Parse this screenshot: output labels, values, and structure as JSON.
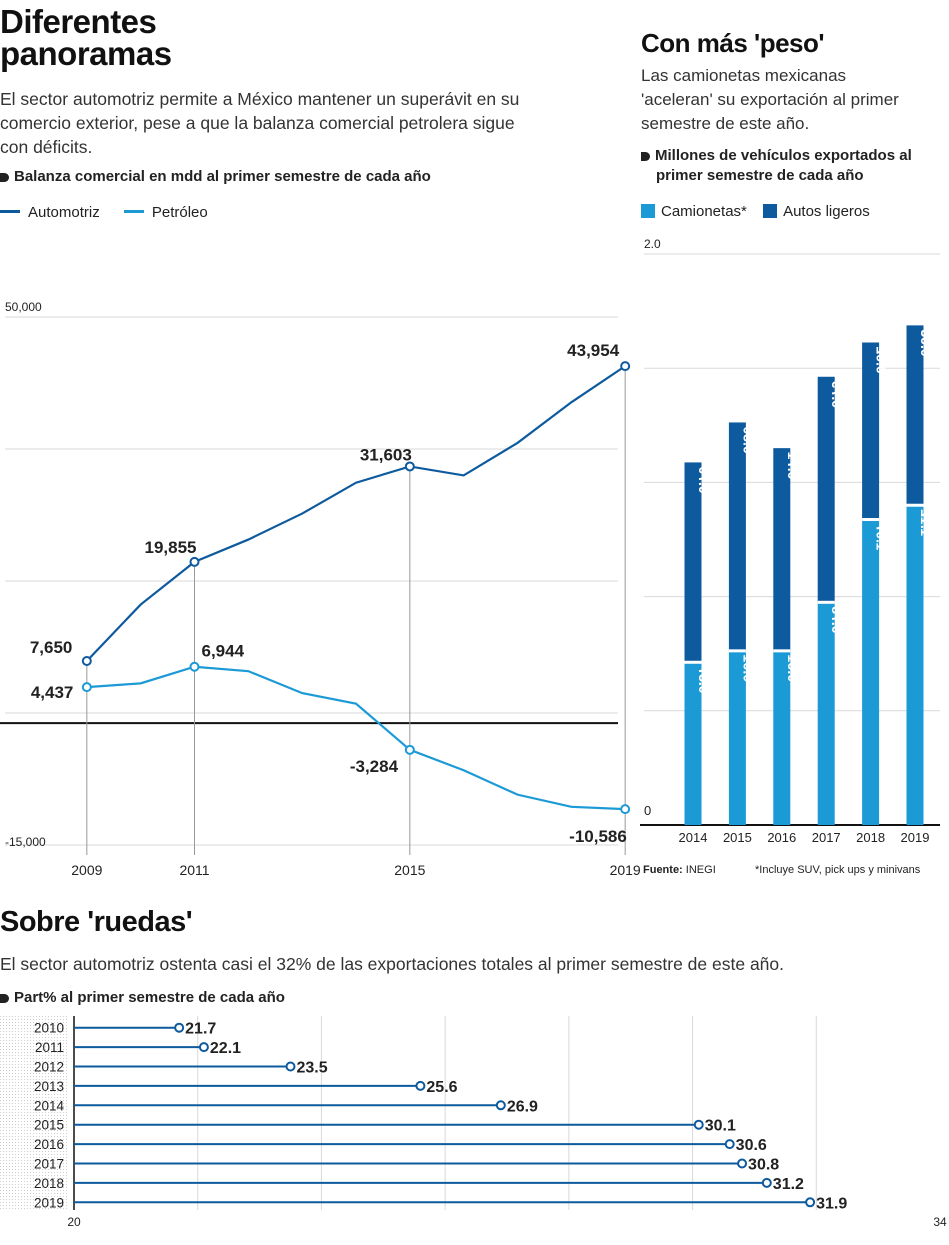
{
  "colors": {
    "dark_blue": "#0e5a9e",
    "light_blue": "#1b9ad6",
    "grid": "#d9d9d9",
    "text": "#222222"
  },
  "left": {
    "title_line1": "Diferentes",
    "title_line2": "panoramas",
    "intro_l1": "El sector automotriz permite a México mantener un superávit en su",
    "intro_l2": "comercio exterior, pese a que la balanza comercial petrolera sigue",
    "intro_l3": "con déficits.",
    "subtitle": "Balanza comercial en mdd al primer semestre de cada año",
    "legend_auto": "Automotriz",
    "legend_petro": "Petróleo"
  },
  "right": {
    "title": "Con más 'peso'",
    "intro_l1": "Las camionetas mexicanas",
    "intro_l2": "'aceleran' su exportación al primer",
    "intro_l3": "semestre de este año.",
    "subtitle_l1": "Millones de vehículos exportados al",
    "subtitle_l2": "primer semestre de cada año",
    "legend_cam": "Camionetas*",
    "legend_autos": "Autos ligeros",
    "source_label": "Fuente:",
    "source_value": "INEGI",
    "note": "*Incluye SUV, pick ups y minivans"
  },
  "bottom": {
    "title": "Sobre 'ruedas'",
    "intro": "El sector automotriz ostenta casi el 32% de las exportaciones totales al primer semestre de este año.",
    "subtitle": "Part% al primer semestre de cada año"
  },
  "chart_data": [
    {
      "type": "line",
      "x": [
        2009,
        2010,
        2011,
        2012,
        2013,
        2014,
        2015,
        2016,
        2017,
        2018,
        2019
      ],
      "x_tick_labels": [
        "2009",
        "2011",
        "2015",
        "2019"
      ],
      "series": [
        {
          "name": "Automotriz",
          "values": [
            7650,
            14600,
            19855,
            22600,
            25800,
            29600,
            31603,
            30500,
            34500,
            39500,
            43954
          ]
        },
        {
          "name": "Petróleo",
          "values": [
            4437,
            4900,
            6944,
            6400,
            3700,
            2400,
            -3284,
            -5800,
            -8800,
            -10300,
            -10586
          ]
        }
      ],
      "labeled_points": [
        {
          "series": "Automotriz",
          "x": 2009,
          "label": "7,650"
        },
        {
          "series": "Automotriz",
          "x": 2011,
          "label": "19,855"
        },
        {
          "series": "Automotriz",
          "x": 2015,
          "label": "31,603"
        },
        {
          "series": "Automotriz",
          "x": 2019,
          "label": "43,954"
        },
        {
          "series": "Petróleo",
          "x": 2009,
          "label": "4,437"
        },
        {
          "series": "Petróleo",
          "x": 2011,
          "label": "6,944"
        },
        {
          "series": "Petróleo",
          "x": 2015,
          "label": "-3,284"
        },
        {
          "series": "Petróleo",
          "x": 2019,
          "label": "-10,586"
        }
      ],
      "ylim": [
        -15000,
        50000
      ],
      "y_tick_labels": [
        "50,000",
        "-15,000"
      ],
      "grid": true
    },
    {
      "type": "bar",
      "stacked": true,
      "categories": [
        "2014",
        "2015",
        "2016",
        "2017",
        "2018",
        "2019"
      ],
      "series": [
        {
          "name": "Camionetas*",
          "values": [
            0.57,
            0.61,
            0.61,
            0.78,
            1.07,
            1.12
          ],
          "labels": [
            "0.57",
            "0.61",
            "0.61",
            "0.78",
            "1.07",
            "1.12"
          ]
        },
        {
          "name": "Autos ligeros",
          "values": [
            0.7,
            0.8,
            0.71,
            0.79,
            0.62,
            0.63
          ],
          "labels": [
            "0.70",
            "0.80",
            "0.71",
            "0.79",
            "0.62",
            "0.63"
          ]
        }
      ],
      "ylim": [
        0,
        2.0
      ],
      "y_tick_labels": [
        "2.0",
        "0"
      ],
      "grid": true
    },
    {
      "type": "bar",
      "orientation": "horizontal",
      "categories": [
        "2010",
        "2011",
        "2012",
        "2013",
        "2014",
        "2015",
        "2016",
        "2017",
        "2018",
        "2019"
      ],
      "values": [
        21.7,
        22.1,
        23.5,
        25.6,
        26.9,
        30.1,
        30.6,
        30.8,
        31.2,
        31.9
      ],
      "labels": [
        "21.7",
        "22.1",
        "23.5",
        "25.6",
        "26.9",
        "30.1",
        "30.6",
        "30.8",
        "31.2",
        "31.9"
      ],
      "xlim": [
        20,
        34
      ],
      "x_tick_labels": [
        "20",
        "34"
      ],
      "grid": true
    }
  ]
}
